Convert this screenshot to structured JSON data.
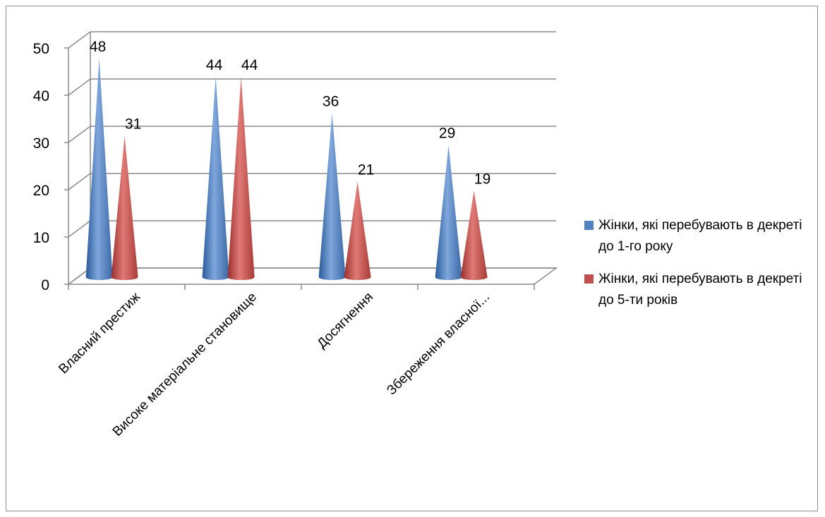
{
  "chart_data": {
    "type": "bar",
    "style": "3d-cone",
    "categories": [
      "Власний престиж",
      "Високе матеріальне становище",
      "Досягнення",
      "Збереження власної..."
    ],
    "series": [
      {
        "name": "Жінки, які перебувають в декреті до 1-го року",
        "color": "#4f81bd",
        "values": [
          48,
          44,
          36,
          29
        ]
      },
      {
        "name": "Жінки, які перебувають в декреті до 5-ти років",
        "color": "#c0504d",
        "values": [
          31,
          44,
          21,
          19
        ]
      }
    ],
    "y_ticks": [
      "0",
      "10",
      "20",
      "30",
      "40",
      "50"
    ],
    "ylim": [
      0,
      50
    ],
    "grid": true,
    "legend_position": "right"
  }
}
